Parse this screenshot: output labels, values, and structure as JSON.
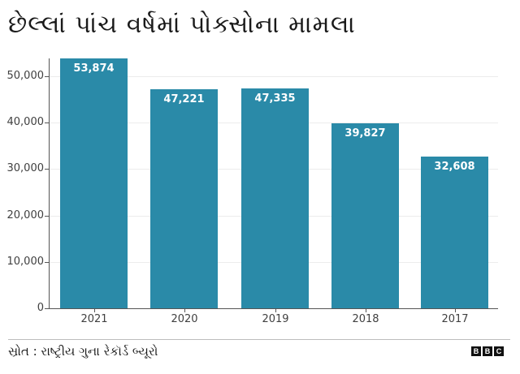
{
  "title": "છેલ્લાં પાંચ વર્ષમાં પોક્સોના મામલા",
  "source": "સ્રોત : રાષ્ટ્રીય ગુના રેકૉર્ડ બ્યૂરો",
  "logo": {
    "letters": [
      "B",
      "B",
      "C"
    ]
  },
  "colors": {
    "bar": "#2a8aa8",
    "bar_label": "#ffffff",
    "axis": "#555555",
    "grid": "#ececec"
  },
  "y_ticks": [
    "0",
    "10,000",
    "20,000",
    "30,000",
    "40,000",
    "50,000"
  ],
  "bars": [
    {
      "category": "2021",
      "value": 53874,
      "label": "53,874"
    },
    {
      "category": "2020",
      "value": 47221,
      "label": "47,221"
    },
    {
      "category": "2019",
      "value": 47335,
      "label": "47,335"
    },
    {
      "category": "2018",
      "value": 39827,
      "label": "39,827"
    },
    {
      "category": "2017",
      "value": 32608,
      "label": "32,608"
    }
  ],
  "chart_data": {
    "type": "bar",
    "title": "છેલ્લાં પાંચ વર્ષમાં પોક્સોના મામલા",
    "categories": [
      "2021",
      "2020",
      "2019",
      "2018",
      "2017"
    ],
    "values": [
      53874,
      47221,
      47335,
      39827,
      32608
    ],
    "xlabel": "",
    "ylabel": "",
    "ylim": [
      0,
      55000
    ],
    "yticks": [
      0,
      10000,
      20000,
      30000,
      40000,
      50000
    ],
    "grid": true,
    "legend": null,
    "data_labels": true,
    "source": "સ્રોત : રાષ્ટ્રીય ગુના રેકૉર્ડ બ્યૂરો"
  }
}
